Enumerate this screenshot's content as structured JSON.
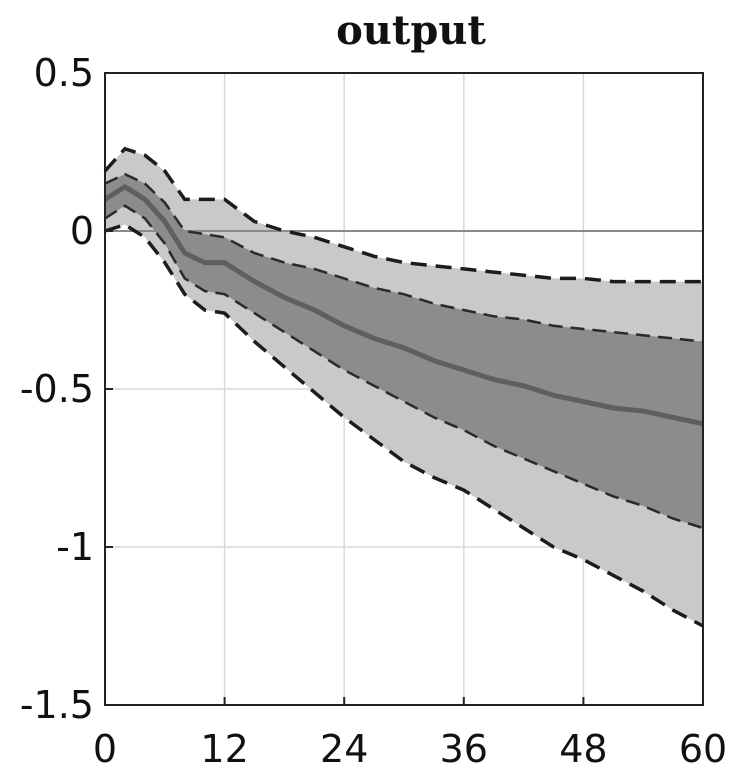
{
  "chart_data": {
    "type": "area",
    "title": "output",
    "xlabel": "",
    "ylabel": "",
    "xlim": [
      0,
      60
    ],
    "ylim": [
      -1.5,
      0.5
    ],
    "xticks": [
      0,
      12,
      24,
      36,
      48,
      60
    ],
    "xtick_labels": [
      "0",
      "12",
      "24",
      "36",
      "48",
      "60"
    ],
    "yticks": [
      0.5,
      0,
      -0.5,
      -1,
      -1.5
    ],
    "ytick_labels": [
      "0.5",
      "0",
      "-0.5",
      "-1",
      "-1.5"
    ],
    "grid": true,
    "zero_line": true,
    "x": [
      0,
      2,
      4,
      6,
      8,
      10,
      12,
      15,
      18,
      21,
      24,
      27,
      30,
      33,
      36,
      39,
      42,
      45,
      48,
      51,
      54,
      57,
      60
    ],
    "series": [
      {
        "role": "outer_upper",
        "values": [
          0.19,
          0.26,
          0.24,
          0.19,
          0.1,
          0.1,
          0.1,
          0.03,
          0.0,
          -0.02,
          -0.05,
          -0.08,
          -0.1,
          -0.11,
          -0.12,
          -0.13,
          -0.14,
          -0.15,
          -0.15,
          -0.16,
          -0.16,
          -0.16,
          -0.16
        ]
      },
      {
        "role": "inner_upper",
        "values": [
          0.15,
          0.18,
          0.15,
          0.09,
          0.0,
          -0.01,
          -0.02,
          -0.07,
          -0.1,
          -0.12,
          -0.15,
          -0.18,
          -0.2,
          -0.23,
          -0.25,
          -0.27,
          -0.28,
          -0.3,
          -0.31,
          -0.32,
          -0.33,
          -0.34,
          -0.35
        ]
      },
      {
        "role": "median",
        "values": [
          0.1,
          0.14,
          0.1,
          0.03,
          -0.07,
          -0.1,
          -0.1,
          -0.16,
          -0.21,
          -0.25,
          -0.3,
          -0.34,
          -0.37,
          -0.41,
          -0.44,
          -0.47,
          -0.49,
          -0.52,
          -0.54,
          -0.56,
          -0.57,
          -0.59,
          -0.61
        ]
      },
      {
        "role": "inner_lower",
        "values": [
          0.04,
          0.08,
          0.04,
          -0.04,
          -0.15,
          -0.19,
          -0.2,
          -0.26,
          -0.32,
          -0.38,
          -0.44,
          -0.49,
          -0.54,
          -0.59,
          -0.63,
          -0.68,
          -0.72,
          -0.76,
          -0.8,
          -0.84,
          -0.87,
          -0.91,
          -0.94
        ]
      },
      {
        "role": "outer_lower",
        "values": [
          0.0,
          0.02,
          -0.02,
          -0.1,
          -0.2,
          -0.25,
          -0.26,
          -0.35,
          -0.43,
          -0.51,
          -0.59,
          -0.66,
          -0.73,
          -0.78,
          -0.82,
          -0.88,
          -0.94,
          -1.0,
          -1.04,
          -1.09,
          -1.14,
          -1.2,
          -1.25
        ]
      }
    ],
    "colors": {
      "outer_band": "#c9c9c9",
      "inner_band": "#8c8c8c",
      "median": "#5f5f5f",
      "bound_lines": "#1c1c1c",
      "grid": "#d9d9d9",
      "zero_line": "#8a8a8a",
      "axes": "#222222"
    }
  }
}
